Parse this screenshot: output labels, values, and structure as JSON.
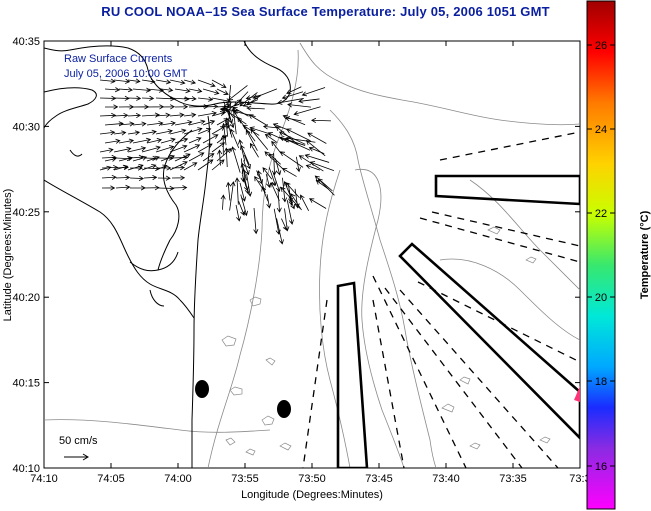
{
  "title": "RU COOL  NOAA–15  Sea Surface Temperature:  July 05, 2006 1051 GMT",
  "overlay": {
    "line1": "Raw Surface Currents",
    "line2": "July 05, 2006 10:00 GMT"
  },
  "axes": {
    "xlabel": "Longitude (Degrees:Minutes)",
    "ylabel": "Latitude (Degrees:Minutes)",
    "x_ticks": [
      "74:10",
      "74:05",
      "74:00",
      "73:55",
      "73:50",
      "73:45",
      "73:40",
      "73:35",
      "73:3"
    ],
    "y_ticks": [
      "40:35",
      "40:30",
      "40:25",
      "40:20",
      "40:15",
      "40:10"
    ]
  },
  "scale": {
    "label": "50 cm/s"
  },
  "colorbar": {
    "label": "Temperature (°C)",
    "ticks": [
      "26",
      "24",
      "22",
      "20",
      "18",
      "16"
    ]
  },
  "colors": {
    "title": "#0a1fa0",
    "overlay_text": "#0a1fa0",
    "contour": "#8a8a8a"
  }
}
